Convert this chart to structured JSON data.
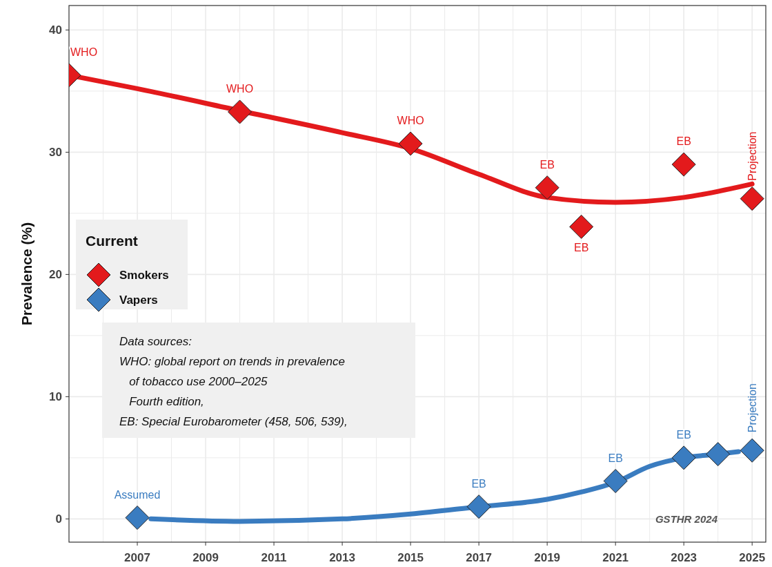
{
  "chart_data": {
    "type": "scatter",
    "ylabel": "Prevalence (%)",
    "legend_title": "Current",
    "legend": "center left",
    "marker": "diamond",
    "grid": true,
    "xlim": [
      2005,
      2025.4
    ],
    "ylim": [
      -1.9,
      42
    ],
    "xticks": [
      {
        "value": 2006,
        "label": null
      },
      2007,
      {
        "value": 2008,
        "label": null
      },
      2009,
      {
        "value": 2010,
        "label": null
      },
      2011,
      {
        "value": 2012,
        "label": null
      },
      2013,
      {
        "value": 2014,
        "label": null
      },
      2015,
      {
        "value": 2016,
        "label": null
      },
      2017,
      {
        "value": 2018,
        "label": null
      },
      2019,
      {
        "value": 2020,
        "label": null
      },
      2021,
      {
        "value": 2022,
        "label": null
      },
      2023,
      {
        "value": 2024,
        "label": null
      },
      2025
    ],
    "yticks": [
      0,
      {
        "value": 5,
        "label": null
      },
      10,
      {
        "value": 15,
        "label": null
      },
      20,
      {
        "value": 25,
        "label": null
      },
      30,
      {
        "value": 35,
        "label": null
      },
      40
    ],
    "series": [
      {
        "type": "line",
        "marker": "none",
        "color": "#e31a1c",
        "x": [
          2005,
          2007,
          2010,
          2013,
          2015,
          2017,
          2019,
          2021,
          2023,
          2025
        ],
        "values": [
          36.3,
          35.2,
          33.4,
          31.6,
          30.3,
          28.2,
          26.3,
          25.9,
          26.3,
          27.4
        ]
      },
      {
        "type": "line",
        "marker": "none",
        "color": "#3a7cc0",
        "x": [
          2007.4,
          2010,
          2013,
          2015,
          2017,
          2019,
          2020,
          2021,
          2022,
          2023,
          2024,
          2024.6
        ],
        "values": [
          0.0,
          -0.2,
          0.0,
          0.4,
          1.0,
          1.6,
          2.2,
          3.0,
          4.3,
          5.0,
          5.3,
          5.5
        ]
      },
      {
        "name": "Smokers",
        "color": "#e31a1c",
        "x": [
          2005,
          2010,
          2015,
          2019,
          2020,
          2023,
          2025
        ],
        "values": [
          36.3,
          33.3,
          30.7,
          27.1,
          23.9,
          29.0,
          26.2
        ]
      },
      {
        "name": "Vapers",
        "color": "#3a7cc0",
        "x": [
          2007,
          2017,
          2021,
          2023,
          2024,
          2025
        ],
        "values": [
          0.1,
          1.0,
          3.1,
          5.0,
          5.3,
          5.6
        ]
      }
    ],
    "annotations": [
      {
        "text": "WHO",
        "x": 2005,
        "y": 36.3
      },
      {
        "text": "WHO",
        "x": 2010,
        "y": 33.3
      },
      {
        "text": "WHO",
        "x": 2015,
        "y": 30.7
      },
      {
        "text": "EB",
        "x": 2019,
        "y": 27.1
      },
      {
        "text": "EB",
        "x": 2020,
        "y": 23.9
      },
      {
        "text": "EB",
        "x": 2023,
        "y": 29.0
      },
      {
        "text": "Projection",
        "x": 2025,
        "y": 26.2
      },
      {
        "text": "Assumed",
        "x": 2007,
        "y": 0.1
      },
      {
        "text": "EB",
        "x": 2017,
        "y": 1.0
      },
      {
        "text": "EB",
        "x": 2021,
        "y": 3.1
      },
      {
        "text": "EB",
        "x": 2023,
        "y": 5.0
      },
      {
        "text": "Projection",
        "x": 2025,
        "y": 5.6
      },
      "Data sources:\nWHO: global report on trends in prevalence\n   of tobacco use 2000–2025\n   Fourth edition,\nEB: Special Eurobarometer (458, 506, 539),",
      "GSTHR 2024"
    ]
  }
}
